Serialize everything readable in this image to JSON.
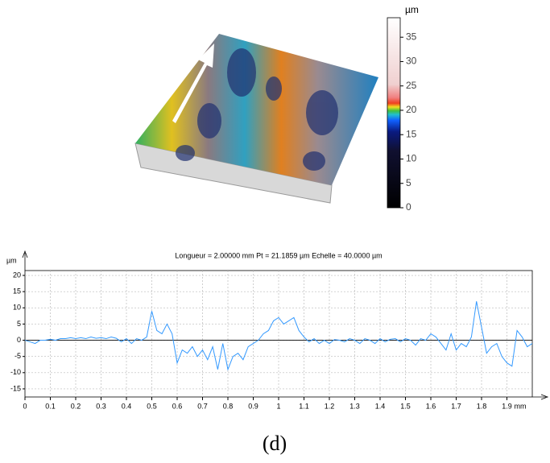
{
  "chart_data": [
    {
      "type": "colorbar",
      "unit": "µm",
      "ylim": [
        0,
        39
      ],
      "yticks": [
        0,
        5,
        10,
        15,
        20,
        25,
        30,
        35
      ]
    },
    {
      "type": "line",
      "title": "Longueur = 2.00000 mm  Pt = 21.1859 µm  Echelle = 40.0000 µm",
      "x_unit": "mm",
      "y_unit": "µm",
      "color": "#3399ff",
      "grid": true,
      "xlim": [
        0,
        2.0
      ],
      "ylim": [
        -17.5,
        21.5
      ],
      "xticks": [
        0,
        0.1,
        0.2,
        0.3,
        0.4,
        0.5,
        0.6,
        0.7,
        0.8,
        0.9,
        1,
        1.1,
        1.2,
        1.3,
        1.4,
        1.5,
        1.6,
        1.7,
        1.8,
        1.9
      ],
      "yticks": [
        -15,
        -10,
        -5,
        0,
        5,
        10,
        15,
        20
      ],
      "x": [
        0,
        0.02,
        0.04,
        0.06,
        0.08,
        0.1,
        0.12,
        0.14,
        0.16,
        0.18,
        0.2,
        0.22,
        0.24,
        0.26,
        0.28,
        0.3,
        0.32,
        0.34,
        0.36,
        0.38,
        0.4,
        0.42,
        0.44,
        0.46,
        0.48,
        0.5,
        0.52,
        0.54,
        0.56,
        0.58,
        0.6,
        0.62,
        0.64,
        0.66,
        0.68,
        0.7,
        0.72,
        0.74,
        0.76,
        0.78,
        0.8,
        0.82,
        0.84,
        0.86,
        0.88,
        0.9,
        0.92,
        0.94,
        0.96,
        0.98,
        1,
        1.02,
        1.04,
        1.06,
        1.08,
        1.1,
        1.12,
        1.14,
        1.16,
        1.18,
        1.2,
        1.22,
        1.24,
        1.26,
        1.28,
        1.3,
        1.32,
        1.34,
        1.36,
        1.38,
        1.4,
        1.42,
        1.44,
        1.46,
        1.48,
        1.5,
        1.52,
        1.54,
        1.56,
        1.58,
        1.6,
        1.62,
        1.64,
        1.66,
        1.68,
        1.7,
        1.72,
        1.74,
        1.76,
        1.78,
        1.8,
        1.82,
        1.84,
        1.86,
        1.88,
        1.9,
        1.92,
        1.94,
        1.96,
        1.98,
        2
      ],
      "values": [
        0,
        -0.5,
        -1,
        0,
        0,
        0.3,
        0,
        0.5,
        0.5,
        0.8,
        0.5,
        0.8,
        0.5,
        1,
        0.6,
        0.8,
        0.5,
        1,
        0.6,
        -0.5,
        0.5,
        -1,
        0.5,
        0,
        1,
        9,
        3,
        2,
        5,
        2,
        -7,
        -3,
        -4,
        -2,
        -5,
        -3,
        -6,
        -2,
        -9,
        -1,
        -9,
        -5,
        -4,
        -6,
        -2,
        -1,
        0,
        2,
        3,
        6,
        7,
        5,
        6,
        7,
        3,
        1,
        -0.5,
        0.5,
        -1,
        0,
        -1,
        0.2,
        0,
        -0.5,
        0.5,
        0,
        -1,
        0.5,
        0,
        -1,
        0.5,
        -0.5,
        0.3,
        0.5,
        -0.5,
        0.5,
        0,
        -1.5,
        0.5,
        0,
        2,
        1,
        -1,
        -3,
        2,
        -3,
        -1,
        -2,
        1,
        12,
        4,
        -4,
        -2,
        -1,
        -5,
        -7,
        -8,
        3,
        1,
        -2,
        -1
      ]
    }
  ],
  "caption": "(d)"
}
